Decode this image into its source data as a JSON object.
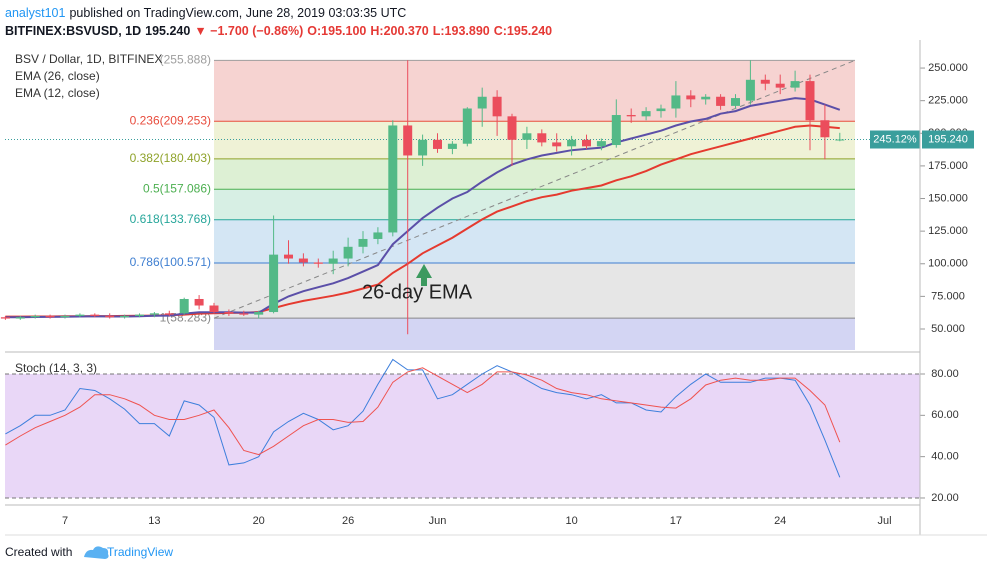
{
  "header": {
    "publisher": "analyst101",
    "published": "published on TradingView.com, June 28, 2019 03:03:35 UTC",
    "symbol": "BITFINEX:BSVUSD, 1D",
    "last": "195.240",
    "change": "▼ −1.700 (−0.86%)",
    "ohlc": [
      "O:195.100",
      "H:200.370",
      "L:193.890",
      "C:195.240"
    ]
  },
  "footer": {
    "created": "Created with",
    "brand": "TradingView"
  },
  "chart_data": [
    {
      "type": "candlestick",
      "categories": [
        null,
        null,
        null,
        null,
        "7",
        null,
        null,
        null,
        null,
        null,
        "13",
        null,
        null,
        null,
        null,
        null,
        null,
        "20",
        null,
        null,
        null,
        null,
        null,
        "26",
        null,
        null,
        null,
        null,
        null,
        "Jun",
        null,
        null,
        null,
        null,
        null,
        null,
        null,
        null,
        "10",
        null,
        null,
        null,
        null,
        null,
        null,
        "17",
        null,
        null,
        null,
        null,
        null,
        null,
        "24",
        null,
        null,
        null,
        null,
        null,
        null,
        "Jul",
        null,
        null
      ],
      "up_color": "#53b987",
      "down_color": "#eb4d5c",
      "series": [
        {
          "name": "BSV / Dollar, 1D, BITFINEX",
          "open": [
            59,
            58,
            59,
            60,
            59,
            60,
            61,
            60,
            59,
            60,
            61,
            62,
            62,
            73,
            68,
            63,
            62,
            61,
            63,
            107,
            104,
            101,
            100,
            104,
            113,
            119,
            124,
            206,
            183,
            195,
            188,
            192,
            219,
            228,
            213,
            195,
            200,
            193,
            190,
            195,
            190,
            191,
            214,
            213,
            217,
            219,
            229,
            226,
            228,
            221,
            225,
            241,
            238,
            235,
            240,
            210,
            195.1,
            null,
            null,
            null,
            null,
            null
          ],
          "high": [
            60,
            60,
            61,
            61,
            61,
            62,
            62,
            62,
            61,
            62,
            63,
            64,
            74,
            76,
            70,
            65,
            64,
            64,
            137,
            118,
            108,
            104,
            110,
            120,
            125,
            128,
            210,
            256,
            199,
            200,
            194,
            220,
            235,
            233,
            215,
            205,
            203,
            200,
            198,
            199,
            196,
            226,
            219,
            220,
            222,
            240,
            233,
            230,
            230,
            230,
            256,
            245,
            245,
            248,
            245,
            222,
            200.37,
            null,
            null,
            null,
            null,
            null
          ],
          "low": [
            57,
            57,
            58,
            58,
            58,
            59,
            59,
            58,
            58,
            59,
            59,
            60,
            61,
            65,
            62,
            60,
            60,
            58,
            62,
            100,
            98,
            97,
            92,
            98,
            108,
            115,
            121,
            46,
            175,
            185,
            184,
            190,
            205,
            198,
            175,
            188,
            190,
            186,
            183,
            188,
            187,
            189,
            208,
            210,
            212,
            212,
            220,
            222,
            218,
            219,
            222,
            233,
            230,
            232,
            187,
            180,
            193.89,
            null,
            null,
            null,
            null,
            null
          ],
          "close": [
            58,
            59,
            60,
            59,
            60,
            61,
            60,
            59,
            60,
            61,
            62,
            61,
            73,
            68,
            63,
            62,
            61,
            63,
            107,
            104,
            101,
            100,
            104,
            113,
            119,
            124,
            206,
            183,
            195,
            188,
            192,
            219,
            228,
            213,
            195,
            200,
            193,
            190,
            195,
            190,
            194,
            214,
            213,
            217,
            219,
            229,
            226,
            228,
            221,
            227,
            241,
            238,
            235,
            240,
            210,
            196.94,
            195.24,
            null,
            null,
            null,
            null,
            null
          ]
        },
        {
          "type": "line",
          "name": "EMA (26, close)",
          "color": "#e53a2f",
          "values": [
            59.5,
            59.5,
            59.6,
            59.6,
            59.7,
            59.8,
            59.9,
            59.9,
            60,
            60.1,
            60.3,
            60.5,
            61,
            61.8,
            62,
            62.3,
            62.4,
            63,
            66,
            69,
            71.5,
            73.5,
            75.5,
            78,
            81,
            84,
            93,
            100,
            108,
            114,
            120,
            127,
            134,
            140,
            144,
            148,
            151,
            153,
            156,
            158,
            160,
            164,
            167,
            171,
            176,
            180,
            184,
            187,
            190,
            193,
            196,
            199,
            202,
            205,
            206,
            205,
            204,
            null,
            null,
            null,
            null,
            null
          ]
        },
        {
          "type": "line",
          "name": "EMA (12, close)",
          "color": "#5b4fa8",
          "values": [
            59,
            59,
            59.2,
            59.3,
            59.4,
            59.6,
            59.7,
            59.6,
            59.6,
            59.8,
            60.1,
            60.3,
            61.8,
            62.8,
            62.9,
            62.8,
            62.6,
            62.5,
            69.3,
            75,
            79,
            82,
            85,
            89,
            94,
            99,
            115,
            125,
            135,
            143,
            150,
            155,
            163,
            170,
            176,
            180,
            183,
            185,
            187,
            188,
            189,
            193,
            196,
            199,
            202,
            206,
            209,
            211,
            215,
            217,
            221,
            223,
            225,
            227,
            226,
            222,
            218,
            null,
            null,
            null,
            null,
            null
          ]
        }
      ],
      "fib_levels": [
        {
          "label": "(255.888)",
          "value": 255.888,
          "color": "#9e9e9e",
          "fill": "#f6d3d1"
        },
        {
          "label": "0.236(209.253)",
          "value": 209.253,
          "color": "#e84c3d",
          "fill": "#eff2d6"
        },
        {
          "label": "0.382(180.403)",
          "value": 180.403,
          "color": "#8fa32b",
          "fill": "#ddf0d4"
        },
        {
          "label": "0.5(157.086)",
          "value": 157.086,
          "color": "#4caf50",
          "fill": "#d7efe4"
        },
        {
          "label": "0.618(133.768)",
          "value": 133.768,
          "color": "#26a69a",
          "fill": "#d4e6f4"
        },
        {
          "label": "0.786(100.571)",
          "value": 100.571,
          "color": "#3f7fd1",
          "fill": "#e6e6e6"
        },
        {
          "label": "1(58.283)",
          "value": 58.283,
          "color": "#888888",
          "fill": "#d3d5f3"
        }
      ],
      "annotation": "26-day EMA",
      "price_label": {
        "percent": "245.12%",
        "value": 195.24,
        "label": "195.240",
        "color": "#3a9e9c"
      },
      "ylim": [
        33.9,
        271.5
      ],
      "yticks": [
        {
          "value": 50,
          "label": "50.000"
        },
        {
          "value": 75,
          "label": "75.000"
        },
        {
          "value": 100,
          "label": "100.000"
        },
        {
          "value": 125,
          "label": "125.000"
        },
        {
          "value": 150,
          "label": "150.000"
        },
        {
          "value": 175,
          "label": "175.000"
        },
        {
          "value": 200,
          "label": "200.000"
        },
        {
          "value": 225,
          "label": "225.000"
        },
        {
          "value": 250,
          "label": "250.000"
        }
      ]
    },
    {
      "type": "stochastic",
      "title": "Stoch (14, 3, 3)",
      "band": [
        20,
        80
      ],
      "band_fill": "#e9d7f7",
      "series": [
        {
          "color": "#3d7fdc",
          "values": [
            51,
            55,
            60,
            60,
            62.6,
            73,
            72,
            68,
            63,
            56,
            56,
            50,
            67,
            65,
            59,
            36,
            37,
            40,
            52,
            57,
            61,
            58,
            53,
            55,
            62,
            75,
            87,
            82,
            82,
            68,
            70,
            75,
            80,
            84,
            81,
            77,
            73,
            71,
            70,
            68,
            70,
            66,
            66,
            62.6,
            61.6,
            69,
            75,
            80,
            76,
            76,
            76,
            78,
            78,
            77,
            65,
            48,
            30,
            null,
            null,
            null,
            null,
            null
          ]
        },
        {
          "color": "#ef5350",
          "values": [
            45.6,
            50,
            54,
            57,
            60,
            64,
            70,
            70,
            68,
            65,
            60,
            58,
            58,
            60,
            62.6,
            54,
            43,
            41,
            45,
            50,
            55,
            58,
            58,
            56.6,
            57,
            64,
            76,
            81,
            83,
            79,
            75,
            71,
            75,
            81,
            81,
            79.5,
            77,
            73,
            71,
            70,
            68,
            67,
            66,
            65,
            64,
            63.5,
            68,
            74.7,
            77,
            78,
            77,
            77,
            78,
            78,
            72,
            65,
            47,
            null,
            null,
            null,
            null,
            null
          ]
        }
      ],
      "ylim": [
        16.6,
        89.2
      ],
      "yticks": [
        {
          "value": 20,
          "label": "20.00"
        },
        {
          "value": 40,
          "label": "40.00"
        },
        {
          "value": 60,
          "label": "60.00"
        },
        {
          "value": 80,
          "label": "80.00"
        }
      ]
    }
  ]
}
